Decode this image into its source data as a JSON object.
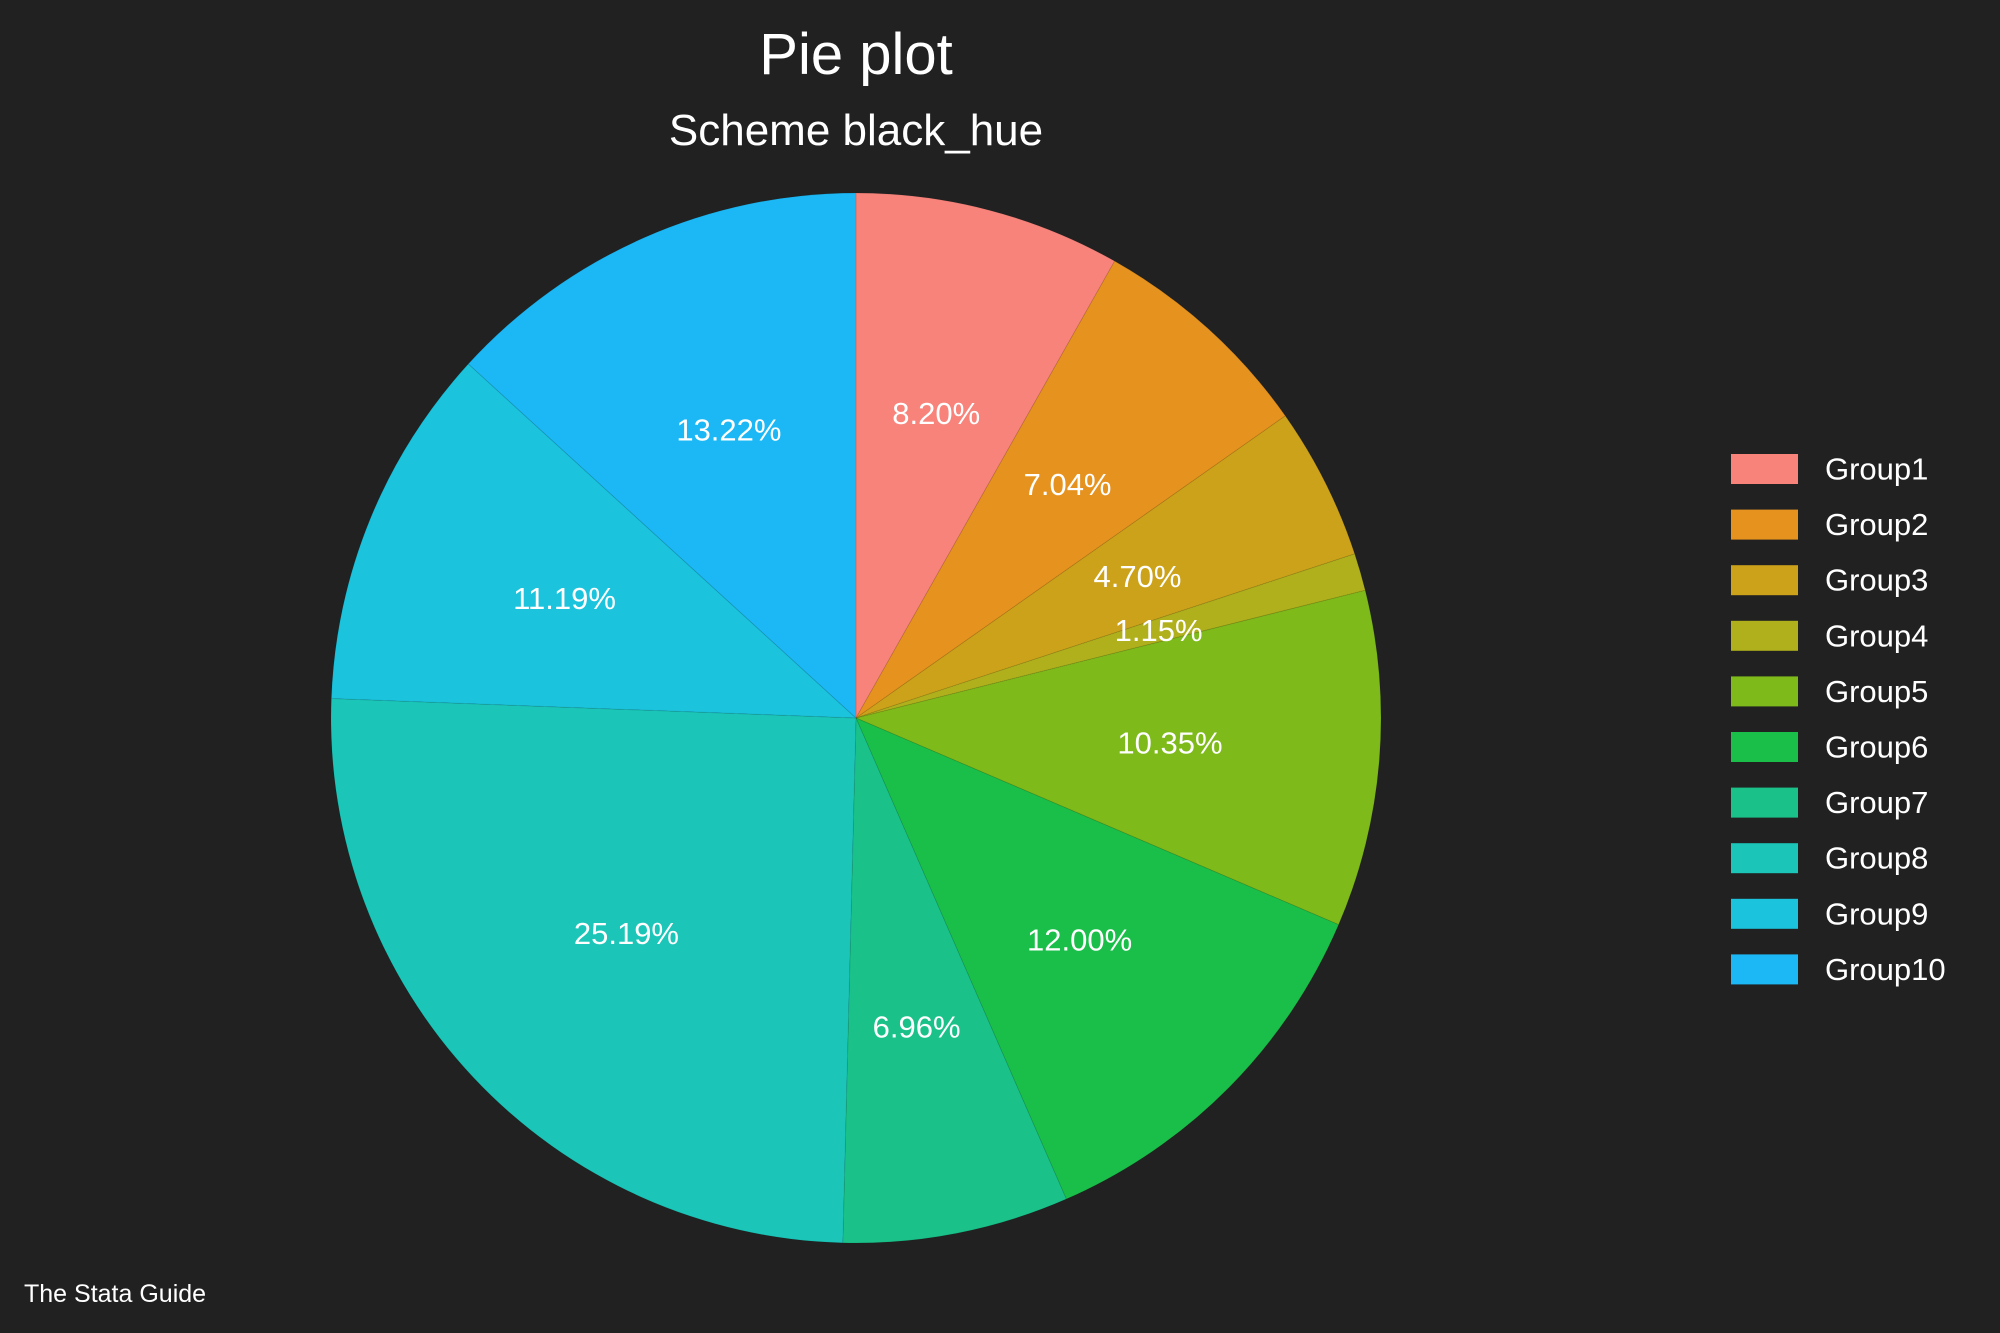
{
  "chart_data": {
    "type": "pie",
    "title": "Pie plot",
    "subtitle": "Scheme black_hue",
    "note": "The Stata Guide",
    "legend_position": "right",
    "categories": [
      "Group1",
      "Group2",
      "Group3",
      "Group4",
      "Group5",
      "Group6",
      "Group7",
      "Group8",
      "Group9",
      "Group10"
    ],
    "values": [
      8.2,
      7.04,
      4.7,
      1.15,
      10.35,
      12.0,
      6.96,
      25.19,
      11.19,
      13.22
    ],
    "labels": [
      "8.20%",
      "7.04%",
      "4.70%",
      "1.15%",
      "10.35%",
      "12.00%",
      "6.96%",
      "25.19%",
      "11.19%",
      "13.22%"
    ],
    "colors": [
      "#F8837B",
      "#E6921E",
      "#CCA21A",
      "#AFB01C",
      "#7EBA1A",
      "#1ABF4A",
      "#1AC28A",
      "#1BC6B8",
      "#1BC3DC",
      "#1BB8F5"
    ],
    "start": "12 o'clock",
    "direction": "clockwise"
  },
  "colors": {
    "background": "#212121",
    "text": "#ffffff"
  }
}
